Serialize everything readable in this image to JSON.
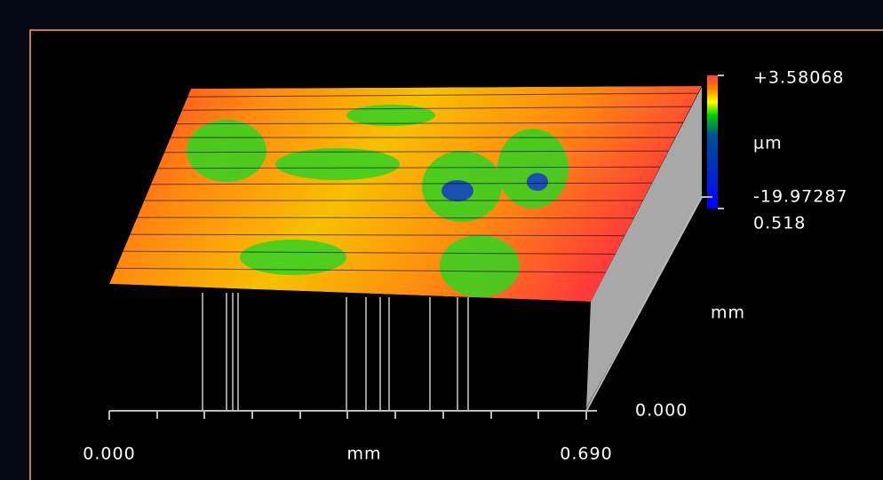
{
  "chart_data": {
    "type": "surface",
    "xlabel": "mm",
    "ylabel": "mm",
    "zlabel": "µm",
    "xlim": [
      0,
      0.69
    ],
    "xticks": [
      {
        "value": 0,
        "label": "0.000"
      },
      {
        "value": 0.69,
        "label": "0.690"
      }
    ],
    "ylim": [
      0,
      0.518
    ],
    "yticks": [
      {
        "value": 0,
        "label": "0.000"
      },
      {
        "value": 0.518,
        "label": "0.518"
      }
    ],
    "zlim": [
      -19.97287,
      3.58068
    ],
    "zticks": [
      {
        "value": -19.97287,
        "label": "-19.97287"
      },
      {
        "value": 3.58068,
        "label": "+3.58068"
      }
    ]
  }
}
